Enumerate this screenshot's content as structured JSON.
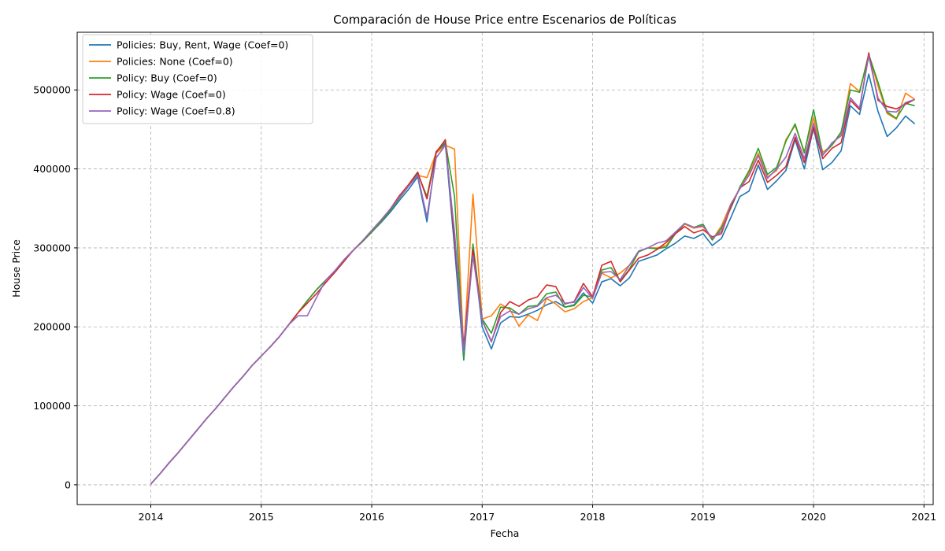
{
  "chart_data": {
    "type": "line",
    "title": "Comparación de House Price entre Escenarios de Políticas",
    "xlabel": "Fecha",
    "ylabel": "House Price",
    "x_start": "2014-01",
    "x_end": "2020-11",
    "xlim": [
      "2013-05",
      "2021-02"
    ],
    "xticks": [
      "2014",
      "2015",
      "2016",
      "2017",
      "2018",
      "2019",
      "2020",
      "2021"
    ],
    "ylim": [
      -25000,
      573000
    ],
    "yticks": [
      0,
      100000,
      200000,
      300000,
      400000,
      500000
    ],
    "ytick_labels": [
      "0",
      "100000",
      "200000",
      "300000",
      "400000",
      "500000"
    ],
    "grid": true,
    "legend_position": "top-left",
    "series": [
      {
        "name": "Policies: Buy, Rent, Wage (Coef=0)",
        "color": "#1f77b4",
        "values": [
          1000,
          14000,
          28000,
          41000,
          55000,
          69000,
          83000,
          96000,
          110000,
          124000,
          137000,
          151000,
          163000,
          175000,
          188000,
          203000,
          218000,
          233000,
          247000,
          259000,
          271000,
          285000,
          297000,
          308000,
          320000,
          332000,
          345000,
          360000,
          374000,
          390000,
          333000,
          420000,
          432000,
          300000,
          158000,
          300000,
          200000,
          172000,
          205000,
          213000,
          212000,
          216000,
          221000,
          228000,
          232000,
          225000,
          228000,
          243000,
          230000,
          257000,
          261000,
          252000,
          262000,
          283000,
          287000,
          291000,
          299000,
          306000,
          315000,
          312000,
          318000,
          303000,
          312000,
          338000,
          365000,
          372000,
          405000,
          374000,
          385000,
          398000,
          437000,
          400000,
          452000,
          399000,
          408000,
          423000,
          480000,
          469000,
          520000,
          473000,
          441000,
          452000,
          467000,
          457000
        ]
      },
      {
        "name": "Policies: None (Coef=0)",
        "color": "#ff7f0e",
        "values": [
          1000,
          14000,
          28000,
          41000,
          55000,
          69000,
          83000,
          96000,
          110000,
          124000,
          137000,
          151000,
          163000,
          175000,
          188000,
          203000,
          218000,
          233000,
          247000,
          259000,
          271000,
          285000,
          297000,
          308000,
          320000,
          333000,
          347000,
          363000,
          378000,
          392000,
          389000,
          420000,
          430000,
          425000,
          168000,
          368000,
          210000,
          214000,
          229000,
          222000,
          201000,
          215000,
          208000,
          236000,
          229000,
          219000,
          223000,
          232000,
          237000,
          268000,
          262000,
          268000,
          278000,
          295000,
          300000,
          300000,
          303000,
          318000,
          330000,
          325000,
          327000,
          310000,
          328000,
          355000,
          375000,
          395000,
          420000,
          390000,
          398000,
          437000,
          455000,
          422000,
          465000,
          421000,
          430000,
          445000,
          508000,
          498000,
          545000,
          505000,
          470000,
          463000,
          496000,
          488000
        ]
      },
      {
        "name": "Policy: Buy (Coef=0)",
        "color": "#2ca02c",
        "values": [
          1000,
          14000,
          28000,
          41000,
          55000,
          69000,
          83000,
          96000,
          110000,
          124000,
          137000,
          151000,
          163000,
          175000,
          188000,
          203000,
          218000,
          233000,
          247000,
          259000,
          271000,
          285000,
          297000,
          308000,
          320000,
          333000,
          347000,
          363000,
          378000,
          394000,
          365000,
          422000,
          434000,
          365000,
          160000,
          305000,
          210000,
          192000,
          225000,
          224000,
          216000,
          226000,
          227000,
          242000,
          244000,
          225000,
          227000,
          240000,
          238000,
          272000,
          275000,
          258000,
          273000,
          295000,
          300000,
          299000,
          301000,
          318000,
          331000,
          326000,
          330000,
          310000,
          325000,
          350000,
          377000,
          398000,
          426000,
          393000,
          402000,
          435000,
          457000,
          420000,
          475000,
          418000,
          430000,
          447000,
          500000,
          497000,
          545000,
          510000,
          472000,
          464000,
          483000,
          480000
        ]
      },
      {
        "name": "Policy: Wage (Coef=0)",
        "color": "#d62728",
        "values": [
          1000,
          14000,
          28000,
          41000,
          55000,
          69000,
          83000,
          96000,
          110000,
          124000,
          137000,
          151000,
          163000,
          175000,
          188000,
          203000,
          218000,
          230000,
          242000,
          256000,
          269000,
          283000,
          297000,
          309000,
          322000,
          335000,
          349000,
          366000,
          380000,
          396000,
          362000,
          421000,
          437000,
          310000,
          175000,
          298000,
          208000,
          181000,
          218000,
          232000,
          226000,
          234000,
          238000,
          253000,
          251000,
          229000,
          232000,
          255000,
          238000,
          278000,
          283000,
          257000,
          272000,
          287000,
          291000,
          298000,
          307000,
          318000,
          327000,
          319000,
          323000,
          314000,
          318000,
          352000,
          376000,
          384000,
          411000,
          383000,
          392000,
          403000,
          440000,
          408000,
          453000,
          413000,
          426000,
          433000,
          487000,
          475000,
          547000,
          487000,
          479000,
          476000,
          482000,
          488000
        ]
      },
      {
        "name": "Policy: Wage (Coef=0.8)",
        "color": "#9467bd",
        "values": [
          1000,
          14000,
          28000,
          41000,
          55000,
          69000,
          83000,
          96000,
          110000,
          124000,
          137000,
          151000,
          163000,
          175000,
          188000,
          203000,
          214000,
          214000,
          237000,
          259000,
          271000,
          285000,
          297000,
          309000,
          322000,
          335000,
          349000,
          364000,
          378000,
          392000,
          339000,
          414000,
          430000,
          320000,
          168000,
          290000,
          208000,
          182000,
          213000,
          220000,
          216000,
          223000,
          226000,
          237000,
          240000,
          230000,
          231000,
          250000,
          236000,
          269000,
          270000,
          260000,
          278000,
          296000,
          300000,
          306000,
          309000,
          320000,
          331000,
          326000,
          328000,
          312000,
          321000,
          355000,
          375000,
          392000,
          417000,
          388000,
          400000,
          415000,
          445000,
          413000,
          458000,
          417000,
          433000,
          442000,
          490000,
          477000,
          543000,
          490000,
          473000,
          472000,
          484000,
          488000
        ]
      }
    ]
  }
}
